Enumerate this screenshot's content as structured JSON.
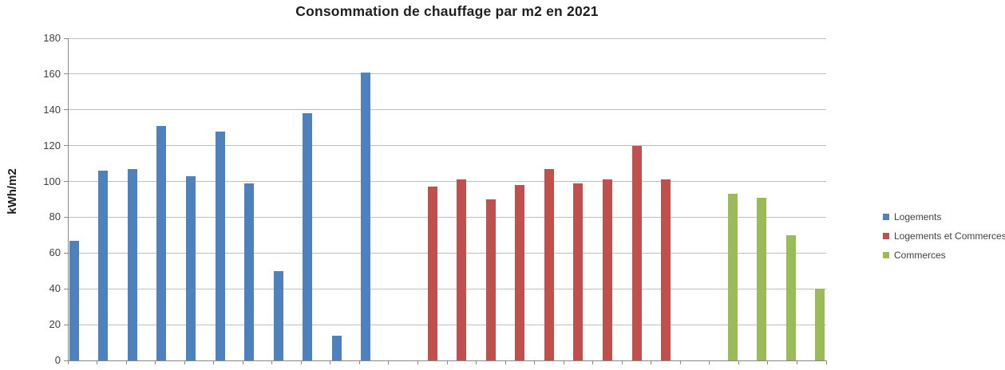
{
  "chart_data": {
    "type": "bar",
    "title": "Consommation de chauffage par m2 en 2021",
    "xlabel": "",
    "ylabel": "kWh/m2",
    "ylim": [
      0,
      180
    ],
    "yticks": [
      0,
      20,
      40,
      60,
      80,
      100,
      120,
      140,
      160,
      180
    ],
    "grid": true,
    "legend_position": "right",
    "x_axis_labels_visible": false,
    "num_categories": 26,
    "series": [
      {
        "name": "Logements",
        "color": "#4F81BD",
        "start_category": 0,
        "values": [
          67,
          106,
          107,
          131,
          103,
          128,
          99,
          50,
          138,
          14,
          161
        ]
      },
      {
        "name": "Logements et Commerces",
        "color": "#C0504D",
        "start_category": 12,
        "values": [
          97,
          101,
          90,
          98,
          107,
          99,
          101,
          120,
          101
        ]
      },
      {
        "name": "Commerces",
        "color": "#9BBB59",
        "start_category": 22,
        "values": [
          93,
          91,
          70,
          40
        ]
      }
    ]
  }
}
